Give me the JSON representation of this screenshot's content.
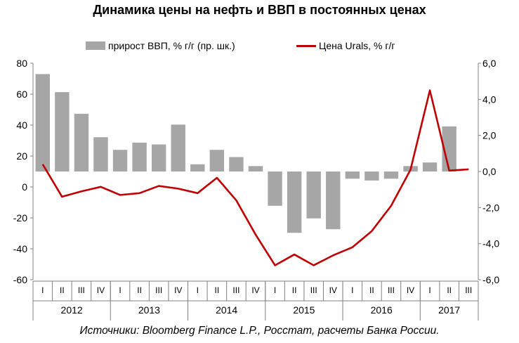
{
  "title": "Динамика цены на нефть и ВВП в постоянных ценах",
  "source": "Источники: Bloomberg Finance L.P., Росстат, расчеты Банка России.",
  "colors": {
    "bar": "#a6a6a6",
    "line": "#c00000",
    "axis": "#808080"
  },
  "chart_data": {
    "type": "bar",
    "legend": [
      {
        "label": "прирост ВВП, % г/г (пр. шк.)",
        "kind": "bar"
      },
      {
        "label": "Цена Urals, % г/г",
        "kind": "line"
      }
    ],
    "legend_position": "top",
    "left_axis": {
      "ylim": [
        -60,
        80
      ],
      "ticks": [
        "80",
        "60",
        "40",
        "20",
        "0",
        "-20",
        "-40",
        "-60"
      ],
      "values": [
        80,
        60,
        40,
        20,
        0,
        -20,
        -40,
        -60
      ]
    },
    "right_axis": {
      "ylim": [
        -6,
        6
      ],
      "ticks": [
        "6,0",
        "4,0",
        "2,0",
        "0,0",
        "-2,0",
        "-4,0",
        "-6,0"
      ],
      "values": [
        6,
        4,
        2,
        0,
        -2,
        -4,
        -6
      ]
    },
    "quarter_labels": [
      "I",
      "II",
      "III",
      "IV",
      "I",
      "II",
      "III",
      "IV",
      "I",
      "II",
      "III",
      "IV",
      "I",
      "II",
      "III",
      "IV",
      "I",
      "II",
      "III",
      "IV",
      "I",
      "II",
      "III"
    ],
    "years": [
      {
        "label": "2012",
        "quarters": 4
      },
      {
        "label": "2013",
        "quarters": 4
      },
      {
        "label": "2014",
        "quarters": 4
      },
      {
        "label": "2015",
        "quarters": 4
      },
      {
        "label": "2016",
        "quarters": 4
      },
      {
        "label": "2017",
        "quarters": 3
      }
    ],
    "series": [
      {
        "name": "прирост ВВП, % г/г (пр. шк.)",
        "axis": "right",
        "type": "bar",
        "values": [
          5.4,
          4.4,
          3.2,
          1.9,
          1.2,
          1.6,
          1.5,
          2.6,
          0.4,
          1.2,
          0.8,
          0.3,
          -1.9,
          -3.4,
          -2.6,
          -3.2,
          -0.4,
          -0.5,
          -0.4,
          0.3,
          0.5,
          2.5,
          null
        ]
      },
      {
        "name": "Цена Urals, % г/г",
        "axis": "right",
        "type": "line",
        "values": [
          0.4,
          -1.4,
          -1.1,
          -0.85,
          -1.3,
          -1.2,
          -0.8,
          -0.95,
          -1.2,
          -0.35,
          -1.6,
          -3.5,
          -5.2,
          -4.6,
          -5.2,
          -4.65,
          -4.2,
          -3.3,
          -1.9,
          0.1,
          4.5,
          0.05,
          0.12
        ]
      }
    ]
  }
}
